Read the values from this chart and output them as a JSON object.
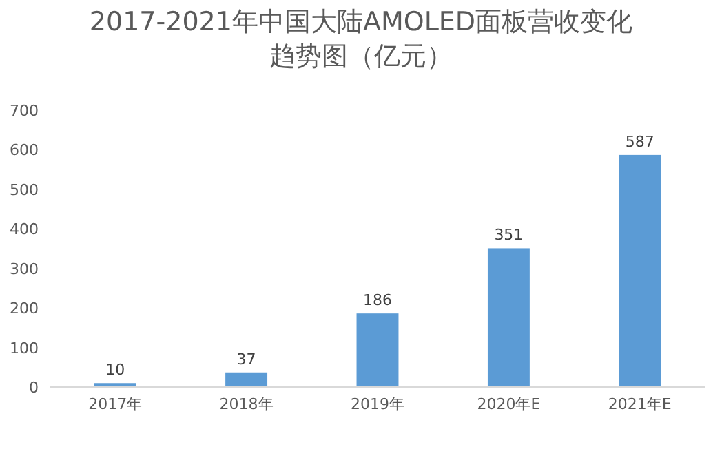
{
  "chart_data": {
    "type": "bar",
    "title": "2017-2021年中国大陆AMOLED面板营收变化趋势图（亿元）",
    "categories": [
      "2017年",
      "2018年",
      "2019年",
      "2020年E",
      "2021年E"
    ],
    "values": [
      10,
      37,
      186,
      351,
      587
    ],
    "color": "#5b9bd5",
    "ylim": [
      0,
      700
    ],
    "yticks": [
      0,
      100,
      200,
      300,
      400,
      500,
      600,
      700
    ],
    "data_labels": true,
    "grid": false
  }
}
